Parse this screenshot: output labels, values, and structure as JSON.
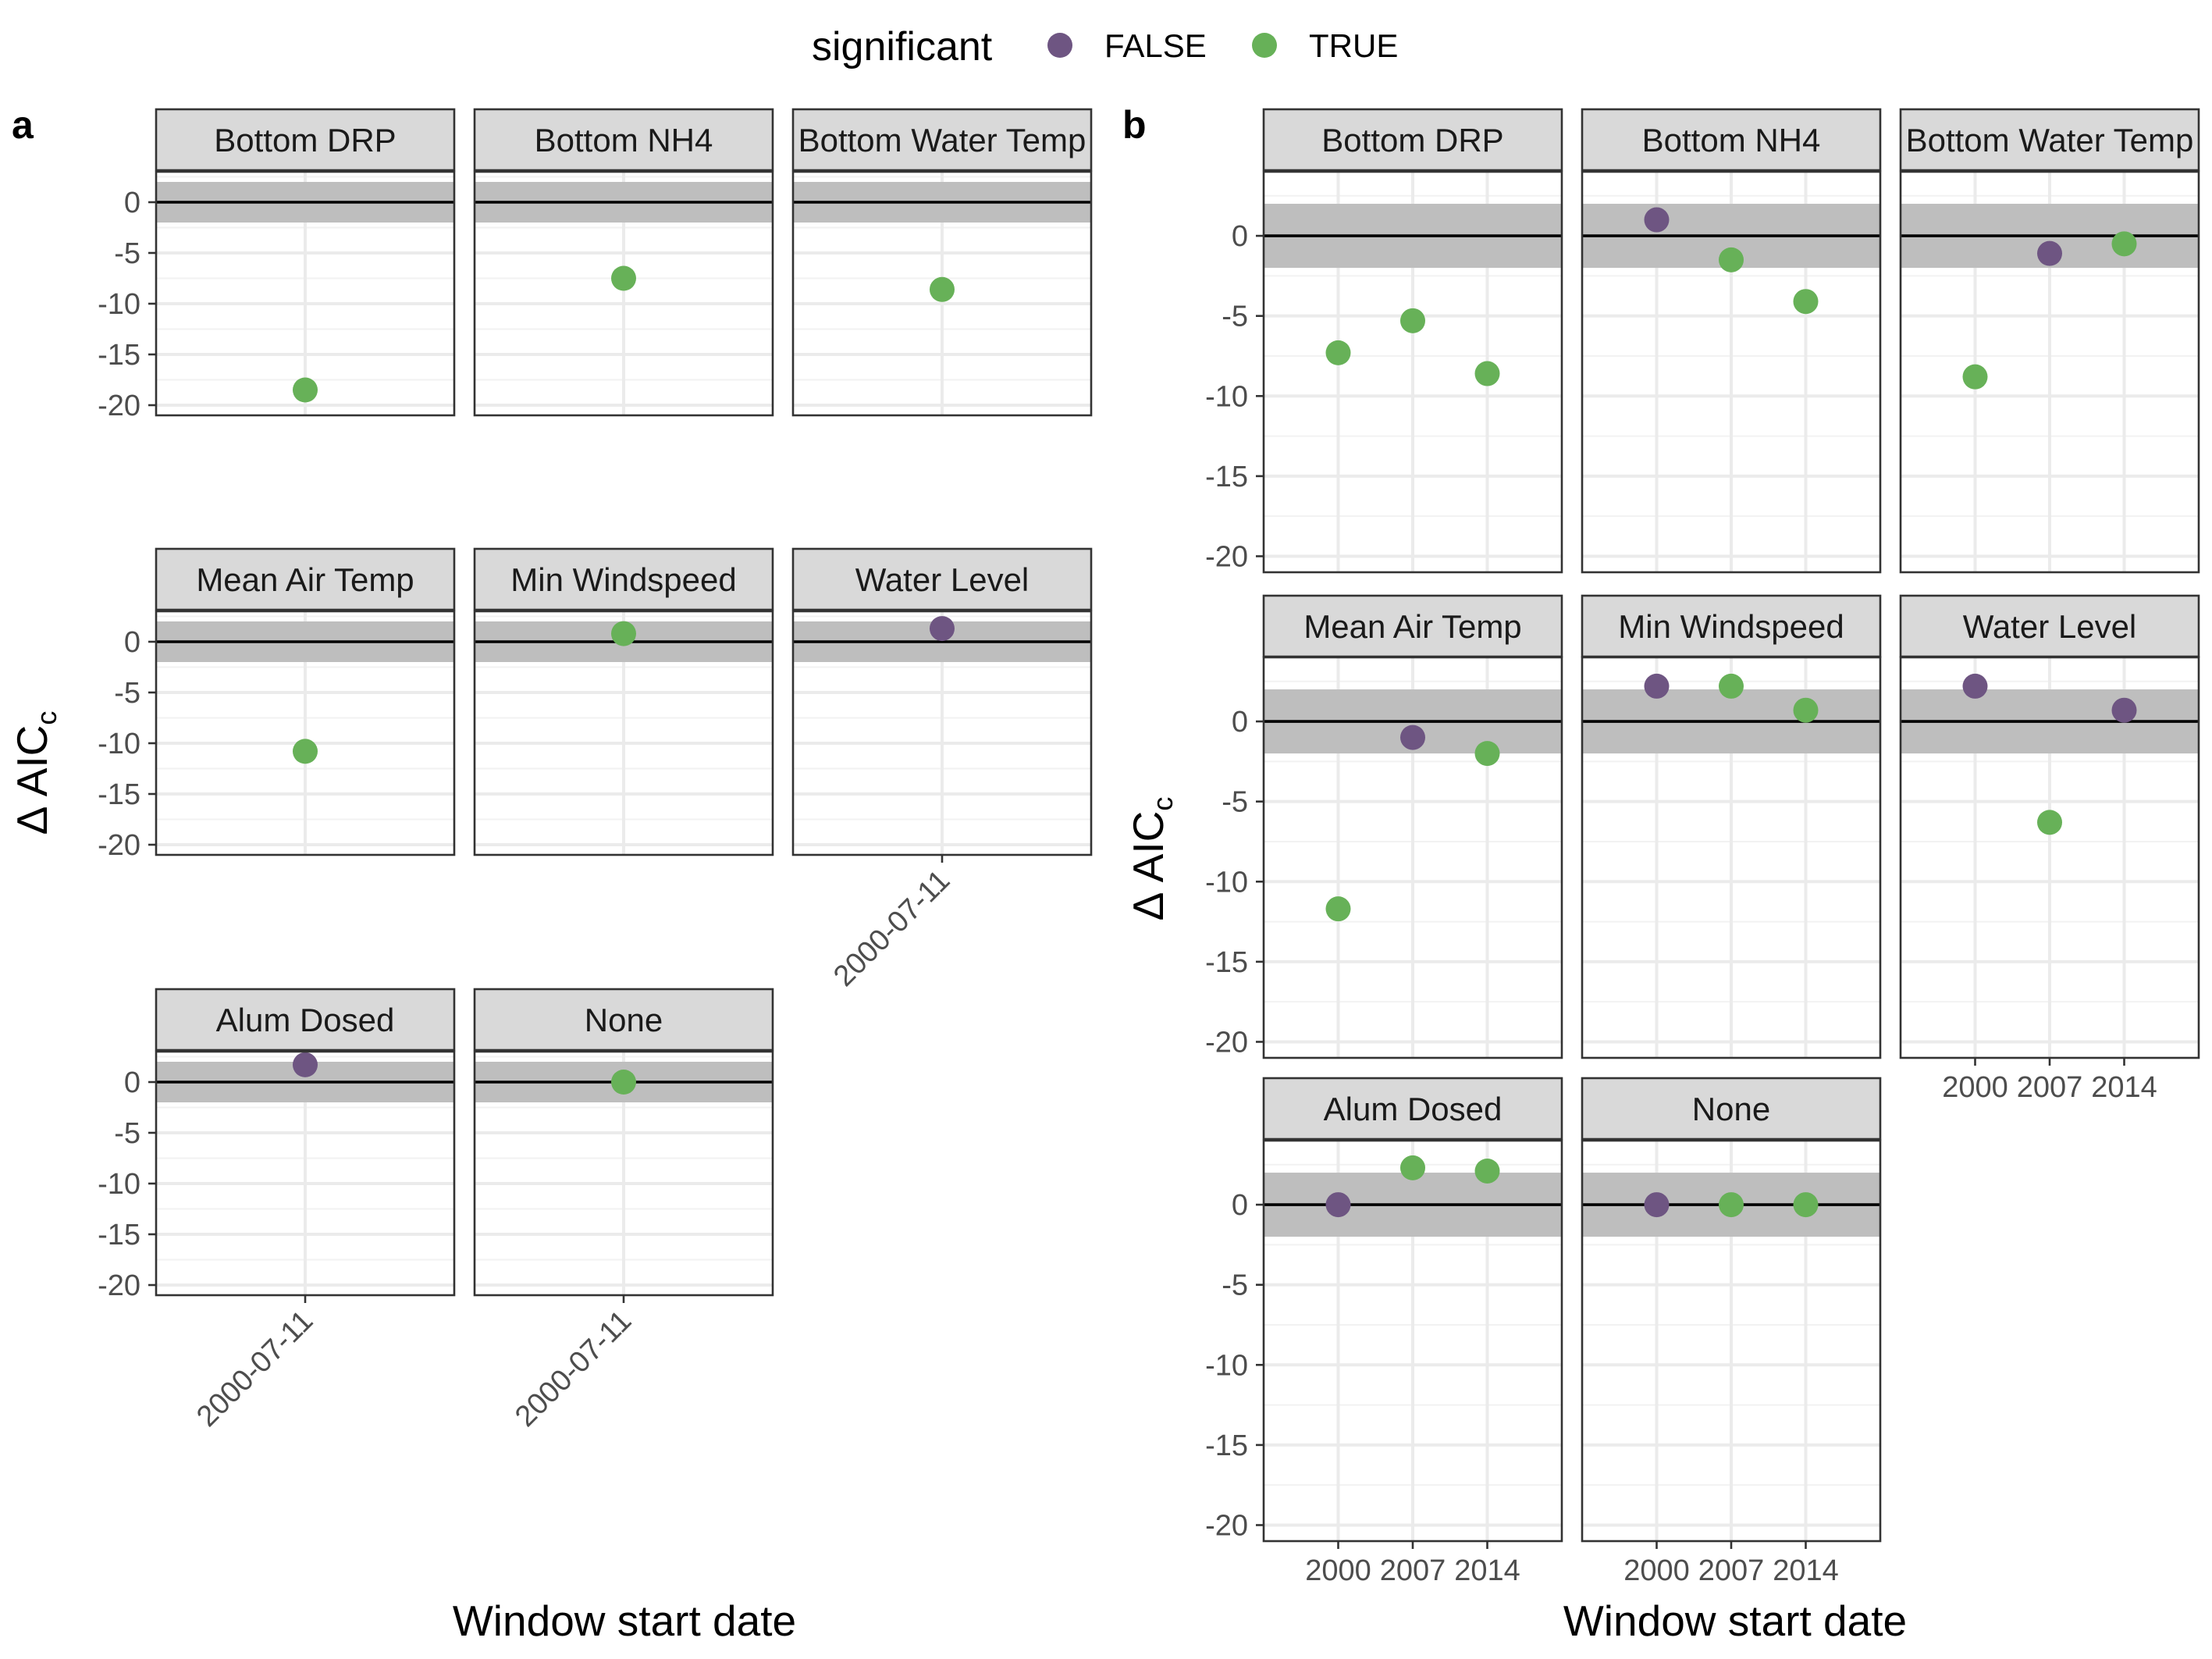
{
  "legend": {
    "title": "significant",
    "entries": [
      {
        "label": "FALSE",
        "color": "#6e5582"
      },
      {
        "label": "TRUE",
        "color": "#67b158"
      }
    ]
  },
  "chart_data": [
    {
      "tag": "a",
      "type": "scatter",
      "xlabel": "Window start date",
      "ylabel": "Δ AIC",
      "ylabel_subscript": "c",
      "ylim": [
        -21,
        3
      ],
      "y_ticks": [
        0,
        -5,
        -10,
        -15,
        -20
      ],
      "y_tick_labels": [
        "0",
        "-5",
        "-10",
        "-15",
        "-20"
      ],
      "x_categories": [
        "2000-07-11"
      ],
      "reference_line": 0,
      "band": [
        -2,
        2
      ],
      "grid": true,
      "layout": {
        "columns": 3,
        "rows": 3
      },
      "facets": [
        {
          "name": "Bottom DRP",
          "points": [
            {
              "x": "2000-07-11",
              "y": -18.5,
              "significant": "TRUE"
            }
          ]
        },
        {
          "name": "Bottom NH4",
          "points": [
            {
              "x": "2000-07-11",
              "y": -7.5,
              "significant": "TRUE"
            }
          ]
        },
        {
          "name": "Bottom Water Temp",
          "points": [
            {
              "x": "2000-07-11",
              "y": -8.6,
              "significant": "TRUE"
            }
          ]
        },
        {
          "name": "Mean Air Temp",
          "points": [
            {
              "x": "2000-07-11",
              "y": -10.8,
              "significant": "TRUE"
            }
          ]
        },
        {
          "name": "Min Windspeed",
          "points": [
            {
              "x": "2000-07-11",
              "y": 0.8,
              "significant": "TRUE"
            }
          ]
        },
        {
          "name": "Water Level",
          "points": [
            {
              "x": "2000-07-11",
              "y": 1.3,
              "significant": "FALSE"
            }
          ]
        },
        {
          "name": "Alum Dosed",
          "points": [
            {
              "x": "2000-07-11",
              "y": 1.7,
              "significant": "FALSE"
            }
          ]
        },
        {
          "name": "None",
          "points": [
            {
              "x": "2000-07-11",
              "y": 0.0,
              "significant": "TRUE"
            }
          ]
        }
      ]
    },
    {
      "tag": "b",
      "type": "scatter",
      "xlabel": "Window start date",
      "ylabel": "Δ AIC",
      "ylabel_subscript": "c",
      "ylim": [
        -21,
        4
      ],
      "y_ticks": [
        0,
        -5,
        -10,
        -15,
        -20
      ],
      "y_tick_labels": [
        "0",
        "-5",
        "-10",
        "-15",
        "-20"
      ],
      "x_categories": [
        "2000",
        "2007",
        "2014"
      ],
      "reference_line": 0,
      "band": [
        -2,
        2
      ],
      "grid": true,
      "layout": {
        "columns": 3,
        "rows": 3
      },
      "facets": [
        {
          "name": "Bottom DRP",
          "points": [
            {
              "x": "2000",
              "y": -7.3,
              "significant": "TRUE"
            },
            {
              "x": "2007",
              "y": -5.3,
              "significant": "TRUE"
            },
            {
              "x": "2014",
              "y": -8.6,
              "significant": "TRUE"
            }
          ]
        },
        {
          "name": "Bottom NH4",
          "points": [
            {
              "x": "2000",
              "y": 1.0,
              "significant": "FALSE"
            },
            {
              "x": "2007",
              "y": -1.5,
              "significant": "TRUE"
            },
            {
              "x": "2014",
              "y": -4.1,
              "significant": "TRUE"
            }
          ]
        },
        {
          "name": "Bottom Water Temp",
          "points": [
            {
              "x": "2000",
              "y": -8.8,
              "significant": "TRUE"
            },
            {
              "x": "2007",
              "y": -1.1,
              "significant": "FALSE"
            },
            {
              "x": "2014",
              "y": -0.5,
              "significant": "TRUE"
            }
          ]
        },
        {
          "name": "Mean Air Temp",
          "points": [
            {
              "x": "2000",
              "y": -11.7,
              "significant": "TRUE"
            },
            {
              "x": "2007",
              "y": -1.0,
              "significant": "FALSE"
            },
            {
              "x": "2014",
              "y": -2.0,
              "significant": "TRUE"
            }
          ]
        },
        {
          "name": "Min Windspeed",
          "points": [
            {
              "x": "2000",
              "y": 2.2,
              "significant": "FALSE"
            },
            {
              "x": "2007",
              "y": 2.2,
              "significant": "TRUE"
            },
            {
              "x": "2014",
              "y": 0.7,
              "significant": "TRUE"
            }
          ]
        },
        {
          "name": "Water Level",
          "points": [
            {
              "x": "2000",
              "y": 2.2,
              "significant": "FALSE"
            },
            {
              "x": "2007",
              "y": -6.3,
              "significant": "TRUE"
            },
            {
              "x": "2014",
              "y": 0.7,
              "significant": "FALSE"
            }
          ]
        },
        {
          "name": "Alum Dosed",
          "points": [
            {
              "x": "2000",
              "y": 0.0,
              "significant": "FALSE"
            },
            {
              "x": "2007",
              "y": 2.3,
              "significant": "TRUE"
            },
            {
              "x": "2014",
              "y": 2.1,
              "significant": "TRUE"
            }
          ]
        },
        {
          "name": "None",
          "points": [
            {
              "x": "2000",
              "y": 0.0,
              "significant": "FALSE"
            },
            {
              "x": "2007",
              "y": 0.0,
              "significant": "TRUE"
            },
            {
              "x": "2014",
              "y": 0.0,
              "significant": "TRUE"
            }
          ]
        }
      ]
    }
  ]
}
